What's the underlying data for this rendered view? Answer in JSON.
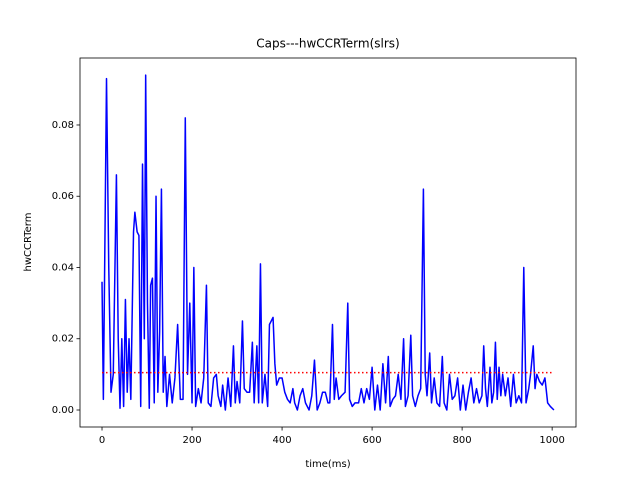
{
  "chart_data": {
    "type": "line",
    "title": "Caps---hwCCRTerm(slrs)",
    "xlabel": "time(ms)",
    "ylabel": "hwCCRTerm",
    "xlim": [
      -48.9,
      1053
    ],
    "ylim": [
      -0.00477,
      0.0988
    ],
    "xticks": [
      0,
      200,
      400,
      600,
      800,
      1000
    ],
    "yticks": [
      {
        "value": 0,
        "label": "0.00"
      },
      {
        "value": 0.02,
        "label": "0.02"
      },
      {
        "value": 0.04,
        "label": "0.04"
      },
      {
        "value": 0.06,
        "label": "0.06"
      },
      {
        "value": 0.08,
        "label": "0.08"
      }
    ],
    "series": [
      {
        "color": "#0000ff",
        "style": "solid",
        "x": [
          0,
          3,
          10,
          15,
          20,
          25,
          32,
          36,
          40,
          44,
          48,
          52,
          56,
          60,
          64,
          70,
          73,
          78,
          82,
          86,
          90,
          94,
          97,
          101,
          105,
          108,
          112,
          116,
          120,
          124,
          128,
          132,
          136,
          140,
          144,
          150,
          156,
          162,
          168,
          174,
          180,
          185,
          190,
          195,
          200,
          204,
          208,
          214,
          220,
          226,
          232,
          236,
          242,
          248,
          254,
          258,
          264,
          268,
          274,
          280,
          286,
          292,
          296,
          300,
          306,
          312,
          316,
          322,
          328,
          334,
          338,
          344,
          348,
          352,
          356,
          362,
          368,
          372,
          376,
          380,
          384,
          388,
          394,
          400,
          406,
          412,
          418,
          424,
          428,
          434,
          440,
          446,
          452,
          460,
          466,
          472,
          478,
          484,
          490,
          496,
          502,
          506,
          512,
          516,
          520,
          526,
          532,
          540,
          546,
          550,
          556,
          562,
          570,
          576,
          582,
          588,
          594,
          600,
          606,
          612,
          618,
          624,
          630,
          636,
          640,
          646,
          652,
          658,
          664,
          670,
          674,
          680,
          686,
          690,
          696,
          702,
          708,
          714,
          718,
          722,
          728,
          732,
          738,
          744,
          750,
          756,
          760,
          766,
          772,
          778,
          784,
          790,
          796,
          802,
          808,
          814,
          820,
          826,
          832,
          838,
          844,
          848,
          852,
          856,
          862,
          866,
          870,
          874,
          878,
          882,
          886,
          890,
          896,
          902,
          908,
          914,
          920,
          926,
          932,
          937,
          942,
          948,
          952,
          958,
          962,
          966,
          972,
          978,
          984,
          990,
          996,
          1004
        ],
        "values": [
          0.036,
          0.003,
          0.093,
          0.04,
          0.005,
          0.01,
          0.066,
          0.02,
          0.0005,
          0.02,
          0.001,
          0.031,
          0.005,
          0.02,
          0.003,
          0.05,
          0.0555,
          0.05,
          0.049,
          0.001,
          0.069,
          0.02,
          0.094,
          0.03,
          0.0005,
          0.035,
          0.037,
          0.002,
          0.06,
          0.005,
          0.022,
          0.062,
          0.005,
          0.015,
          0.001,
          0.01,
          0.002,
          0.009,
          0.024,
          0.003,
          0.003,
          0.082,
          0.01,
          0.03,
          0.002,
          0.04,
          0.001,
          0.006,
          0.002,
          0.009,
          0.035,
          0.002,
          0.001,
          0.009,
          0.01,
          0.004,
          0.001,
          0.007,
          0.0,
          0.009,
          0.001,
          0.018,
          0.002,
          0.008,
          0.002,
          0.025,
          0.006,
          0.005,
          0.005,
          0.019,
          0.002,
          0.018,
          0.002,
          0.041,
          0.002,
          0.01,
          0.001,
          0.024,
          0.025,
          0.026,
          0.013,
          0.007,
          0.009,
          0.009,
          0.005,
          0.003,
          0.002,
          0.006,
          0.002,
          0.0,
          0.004,
          0.006,
          0.002,
          0.0,
          0.004,
          0.014,
          0.0,
          0.002,
          0.005,
          0.005,
          0.002,
          0.002,
          0.024,
          0.003,
          0.009,
          0.003,
          0.004,
          0.005,
          0.03,
          0.003,
          0.001,
          0.002,
          0.002,
          0.006,
          0.002,
          0.006,
          0.003,
          0.012,
          0.0,
          0.007,
          0.0,
          0.013,
          0.002,
          0.015,
          0.001,
          0.003,
          0.004,
          0.01,
          0.003,
          0.02,
          0.001,
          0.004,
          0.021,
          0.004,
          0.001,
          0.004,
          0.006,
          0.062,
          0.01,
          0.004,
          0.016,
          0.002,
          0.009,
          0.002,
          0.001,
          0.015,
          0.002,
          0.0,
          0.01,
          0.003,
          0.004,
          0.009,
          0.0,
          0.007,
          0.0,
          0.005,
          0.009,
          0.002,
          0.006,
          0.002,
          0.004,
          0.018,
          0.006,
          0.001,
          0.012,
          0.002,
          0.005,
          0.019,
          0.003,
          0.012,
          0.004,
          0.01,
          0.004,
          0.009,
          0.001,
          0.01,
          0.002,
          0.004,
          0.002,
          0.04,
          0.002,
          0.006,
          0.01,
          0.018,
          0.006,
          0.01,
          0.008,
          0.007,
          0.009,
          0.002,
          0.001,
          0.0
        ]
      },
      {
        "color": "#ff0000",
        "style": "dotted",
        "x": [
          0,
          1004
        ],
        "values": [
          0.0105,
          0.0105
        ]
      }
    ]
  }
}
